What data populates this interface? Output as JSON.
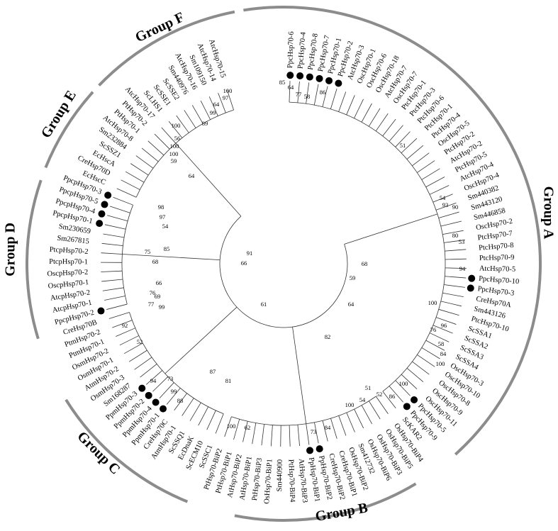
{
  "groups": [
    "Group A",
    "Group B",
    "Group C",
    "Group D",
    "Group E",
    "Group F"
  ],
  "leaves": [
    "PpcHsp70-6",
    "PpcHsp70-4",
    "PpcHsp70-8",
    "PpcHsp70-7",
    "PpcHsp70-1",
    "PpcHsp70-2",
    "AtcHsp70-3",
    "OscHsp70-1",
    "OscHsp70-6",
    "OscHsp70-18",
    "AtcHsp70-7",
    "OscHsp70-7",
    "PtcHsp70-1",
    "PtcHsp70-3",
    "PtcHsp70-6",
    "PtcHsp70-1",
    "PtcHsp70-4",
    "OscHsp70-5",
    "PtcHsp70-2",
    "AtcHsp70-2",
    "PtcHsp70-5",
    "AtcHsp70-4",
    "OscHsp70-4",
    "Sm440382",
    "Sm443120",
    "Sm446858",
    "OscHsp70-2",
    "PtcHsp70-7",
    "PtcHsp70-8",
    "PtcHsp70-9",
    "AtcHsp70-5",
    "PpcHsp70-10",
    "PpcHsp70-3",
    "CreHsp70A",
    "Sm443126",
    "PtcHsp70-10",
    "ScSSA1",
    "ScSSA2",
    "ScSSA3",
    "ScSSA4",
    "OscHsp70-3",
    "OscHsp70-10",
    "OscHsp70-8",
    "OscHsp70-9",
    "OscHsp70-11",
    "PpcHsp70-5",
    "PpcHsp70-9",
    "ScKAR2",
    "OsHsp70-BiP4",
    "OsHsp70-BiP5",
    "OsHsp70-BiP3",
    "OsHsp70-BiP6",
    "Sm412732",
    "OsHsp70-BiP2",
    "CreHsp70-BiP1",
    "CreHsp70-BiP2",
    "PpHsp70-BiP2",
    "PpHsp70-BiP1",
    "AtHsp70-BiP3",
    "PtHsp70-BiP4",
    "Sm440900",
    "OsHsp70-BiP1",
    "PtHsp70-BiP3",
    "AtHsp70-BiP1",
    "AtHsp70-BiP2",
    "PtHsp70-BiP1",
    "PtHsp70-BiP2",
    "ScSSC1",
    "ScECM10",
    "EcDnaK",
    "ScSSQ1",
    "AtmHsp70-1",
    "CreHsp70C",
    "PpmHsp70-1",
    "PpmHsp70-4",
    "PpmHsp70-2",
    "PpmHsp70-3",
    "Sm168287",
    "OsmHsp70-3",
    "AtmHsp70-2",
    "OsmHsp70-1",
    "OsmHsp70-2",
    "PtmHsp70-1",
    "PtmHsp70-2",
    "CreHsp70B",
    "PpcpHsp70-2",
    "AtcpHsp70-1",
    "AtcpHsp70-2",
    "OscpHsp70-1",
    "OscpHsp70-2",
    "PtcpHsp70-1",
    "PtcpHsp70-2",
    "Sm267815",
    "Sm230659",
    "PpcpHsp70-1",
    "PpcpHsp70-4",
    "PpcpHsp70-5",
    "PpcpHsp70-3",
    "EcHscC",
    "CreHsp70D",
    "EcHscA",
    "ScSSZ1",
    "Sm232884",
    "AtcHsp70-8",
    "PtHsp70-1",
    "PtHsp70-2",
    "AtcHsp70-17",
    "ScLHS1",
    "ScSSE1",
    "ScSSE2",
    "Sm440976",
    "AtcHsp70-16",
    "Sm109150",
    "AtcHsp70-14",
    "AtcHsp70-15"
  ],
  "bootstrap_values": [
    85,
    64,
    77,
    58,
    86,
    51,
    54,
    93,
    90,
    80,
    53,
    94,
    68,
    59,
    100,
    96,
    76,
    58,
    84,
    100,
    100,
    64,
    82,
    51,
    52,
    86,
    54,
    100,
    73,
    84,
    81,
    87,
    100,
    62,
    92,
    52,
    94,
    73,
    99,
    88,
    61,
    66,
    91,
    99,
    76,
    66,
    69,
    77,
    68,
    75,
    85,
    54,
    97,
    98,
    64,
    59,
    100,
    100,
    56,
    100,
    89,
    99,
    64,
    97,
    100
  ]
}
